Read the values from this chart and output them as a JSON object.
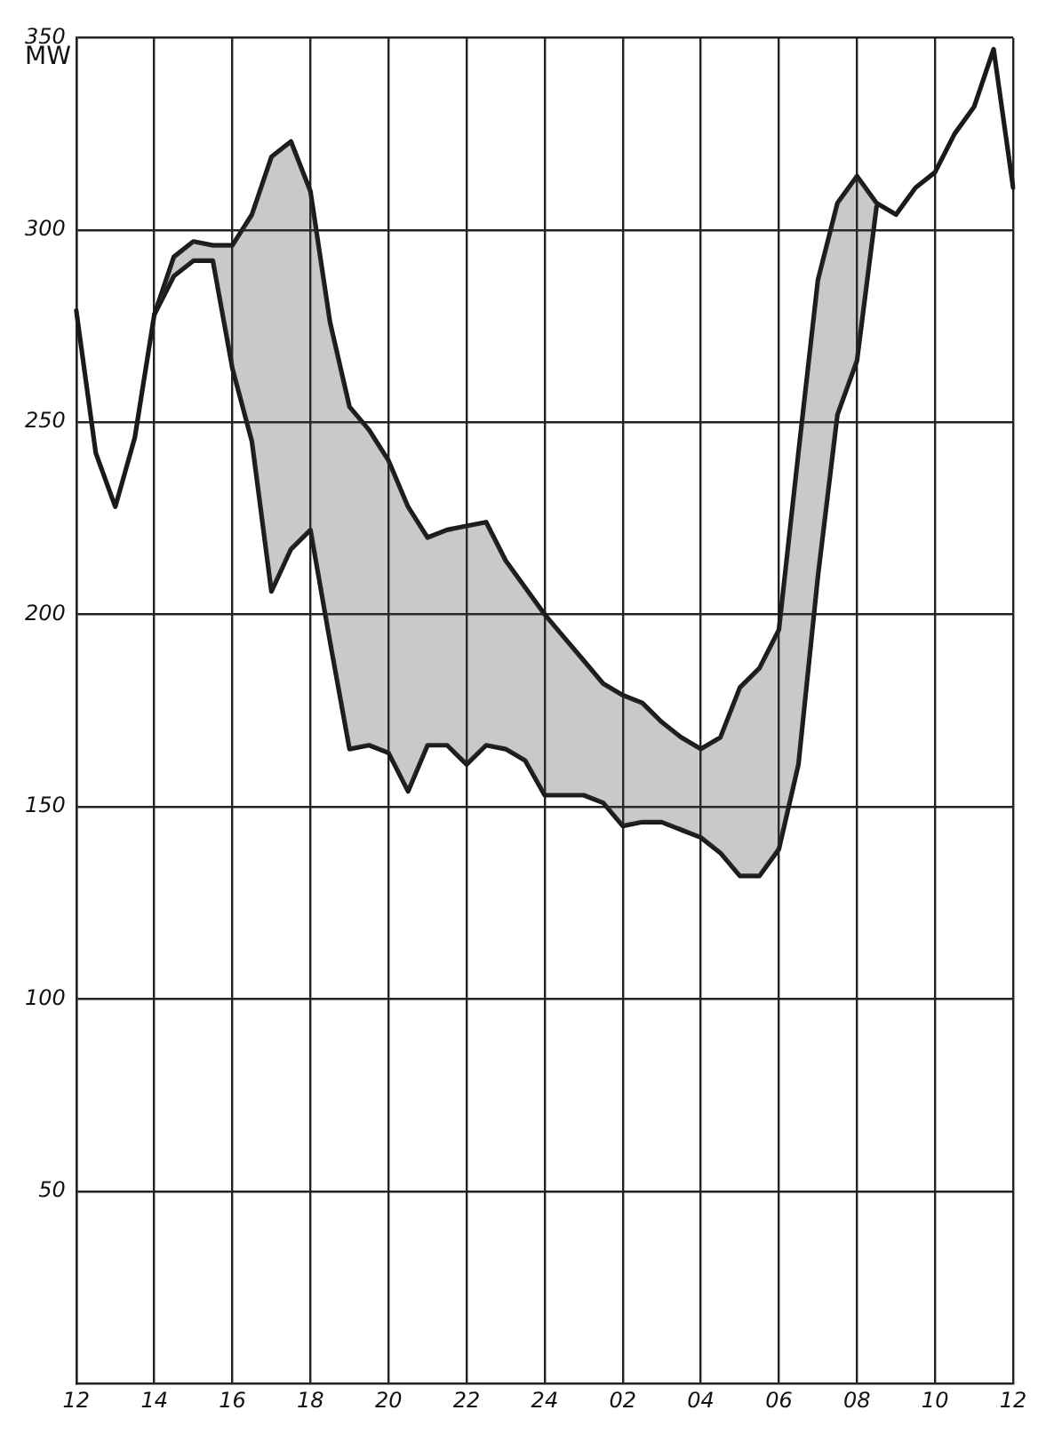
{
  "chart_data": {
    "type": "line",
    "ylabel": "MW",
    "ylim": [
      0,
      350
    ],
    "categories": [
      "12",
      null,
      null,
      null,
      "14",
      null,
      null,
      null,
      "16",
      null,
      null,
      null,
      "18",
      null,
      null,
      null,
      "20",
      null,
      null,
      null,
      "22",
      null,
      null,
      null,
      "24",
      null,
      null,
      null,
      "02",
      null,
      null,
      null,
      "04",
      null,
      null,
      null,
      "06",
      null,
      null,
      null,
      "08",
      null,
      null,
      null,
      "10",
      null,
      null,
      null,
      "12"
    ],
    "yticks": [
      50,
      100,
      150,
      200,
      250,
      300,
      350
    ],
    "grid": true,
    "legend": false,
    "marker": "none",
    "line_style": "solid",
    "series": [
      {
        "color": "#1a1a1a",
        "values": [
          279,
          242,
          228,
          246,
          278,
          293,
          297,
          296,
          296,
          304,
          319,
          323,
          310,
          276,
          254,
          248,
          240,
          228,
          220,
          222,
          223,
          224,
          214,
          207,
          200,
          194,
          188,
          182,
          179,
          177,
          172,
          168,
          165,
          168,
          181,
          186,
          196,
          242,
          287,
          307,
          314,
          307,
          304,
          311,
          315,
          325,
          332,
          347,
          311
        ],
        "lower": [
          null,
          null,
          null,
          null,
          278,
          288,
          292,
          292,
          264,
          245,
          206,
          217,
          222,
          193,
          165,
          166,
          164,
          154,
          166,
          166,
          161,
          166,
          165,
          162,
          153,
          153,
          153,
          151,
          145,
          146,
          146,
          144,
          142,
          138,
          132,
          132,
          139,
          161,
          210,
          252,
          266,
          306,
          null,
          null,
          null,
          null,
          null,
          null,
          null
        ],
        "upper": [
          null,
          null,
          null,
          null,
          278,
          293,
          297,
          296,
          296,
          304,
          319,
          323,
          310,
          276,
          254,
          248,
          240,
          228,
          220,
          222,
          223,
          224,
          214,
          207,
          200,
          194,
          188,
          182,
          179,
          177,
          172,
          168,
          165,
          168,
          181,
          186,
          196,
          242,
          287,
          307,
          314,
          307,
          null,
          null,
          null,
          null,
          null,
          null,
          null
        ]
      },
      {
        "color": "#1a1a1a",
        "values": [
          null,
          null,
          null,
          null,
          278,
          288,
          292,
          292,
          264,
          245,
          206,
          217,
          222,
          193,
          165,
          166,
          164,
          154,
          166,
          166,
          161,
          166,
          165,
          162,
          153,
          153,
          153,
          151,
          145,
          146,
          146,
          144,
          142,
          138,
          132,
          132,
          139,
          161,
          210,
          252,
          266,
          306,
          null,
          null,
          null,
          null,
          null,
          null,
          null
        ]
      }
    ]
  }
}
